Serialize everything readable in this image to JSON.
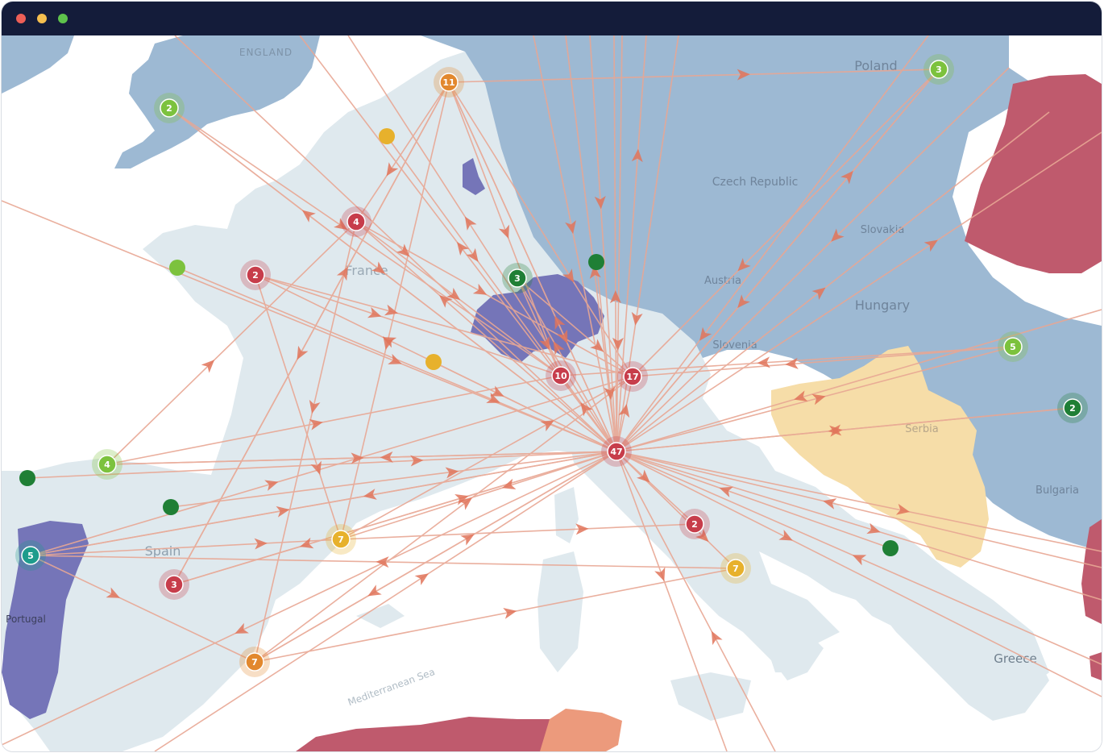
{
  "window": {
    "controls": [
      "close",
      "minimize",
      "maximize"
    ]
  },
  "map": {
    "labels": {
      "england": "ENGLAND",
      "poland": "Poland",
      "czech": "Czech Republic",
      "slovakia": "Slovakia",
      "france": "France",
      "austria": "Austria",
      "hungary": "Hungary",
      "slovenia": "Slovenia",
      "serbia": "Serbia",
      "bulgaria": "Bulgaria",
      "spain": "Spain",
      "portugal": "Portugal",
      "greece": "Greece",
      "sea": "Mediterranean Sea"
    },
    "colors": {
      "sea": "#ffffff",
      "land": "#dfe9ee",
      "blue_region": "#9db9d3",
      "switzerland": "#7575b8",
      "portugal": "#7575b8",
      "russia_red": "#bf5a6d",
      "serbia_yellow": "#f6dda8",
      "flow": "#e8a794",
      "arrow": "#e0745b",
      "marker_red": "#c73d4b",
      "marker_orange": "#e2882e",
      "marker_yellow": "#e7b12c",
      "marker_lightgreen": "#7cc23d",
      "marker_green": "#1f7f35",
      "marker_teal": "#1e9c8c"
    },
    "markers": [
      {
        "id": "m-11",
        "label": "11",
        "color": "orange"
      },
      {
        "id": "m-3-poland",
        "label": "3",
        "color": "lightgreen"
      },
      {
        "id": "m-2-wales",
        "label": "2",
        "color": "lightgreen"
      },
      {
        "id": "m-4-paris",
        "label": "4",
        "color": "red"
      },
      {
        "id": "m-2-nantes",
        "label": "2",
        "color": "red"
      },
      {
        "id": "m-3-basel",
        "label": "3",
        "color": "green"
      },
      {
        "id": "m-10",
        "label": "10",
        "color": "red"
      },
      {
        "id": "m-17",
        "label": "17",
        "color": "red"
      },
      {
        "id": "m-47",
        "label": "47",
        "color": "red"
      },
      {
        "id": "m-5-hungary",
        "label": "5",
        "color": "lightgreen"
      },
      {
        "id": "m-2-romania",
        "label": "2",
        "color": "green"
      },
      {
        "id": "m-4-spain",
        "label": "4",
        "color": "lightgreen"
      },
      {
        "id": "m-5-porto",
        "label": "5",
        "color": "teal"
      },
      {
        "id": "m-7-barcelona",
        "label": "7",
        "color": "yellow"
      },
      {
        "id": "m-2-rome",
        "label": "2",
        "color": "red"
      },
      {
        "id": "m-7-naples",
        "label": "7",
        "color": "yellow"
      },
      {
        "id": "m-3-madrid",
        "label": "3",
        "color": "red"
      },
      {
        "id": "m-7-valencia",
        "label": "7",
        "color": "orange"
      }
    ]
  }
}
